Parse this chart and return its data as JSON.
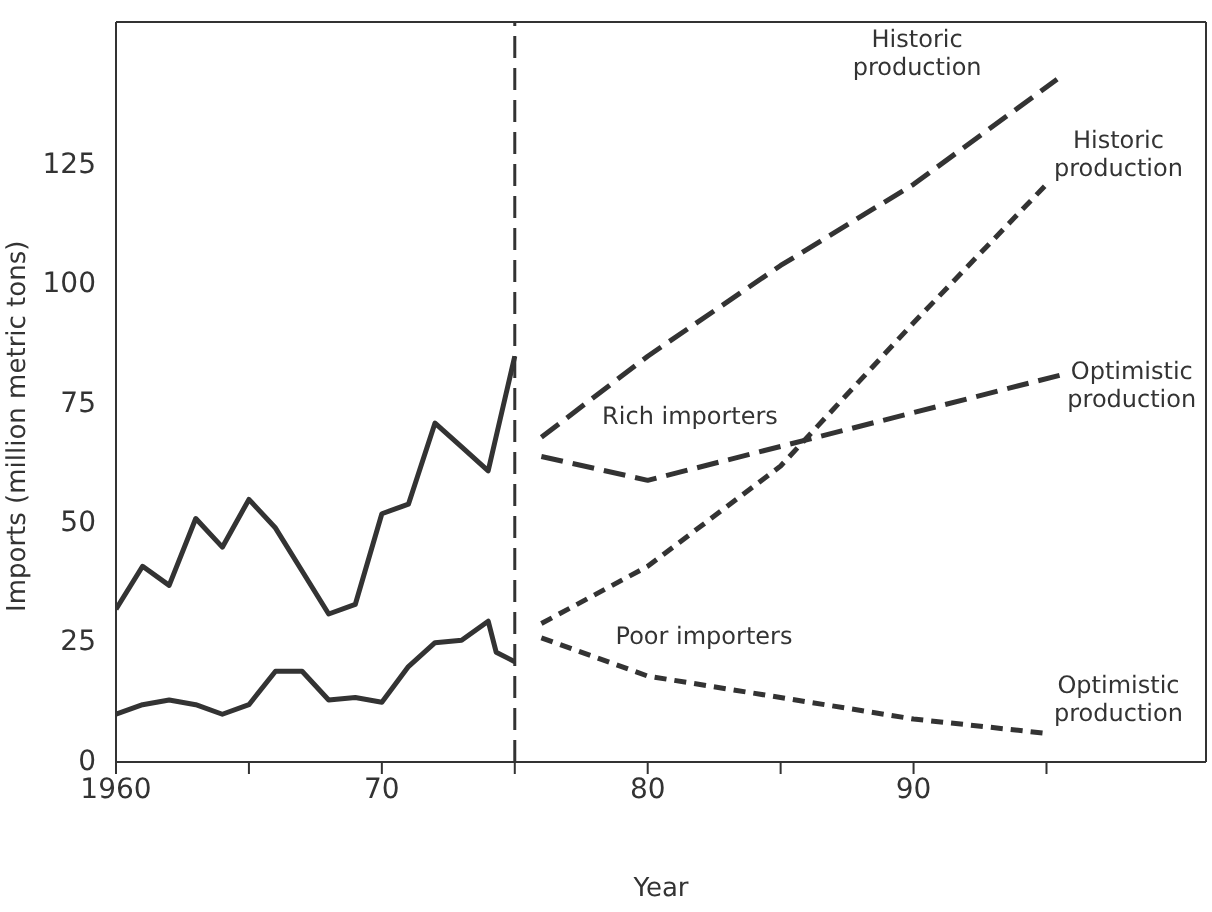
{
  "chart_data": {
    "type": "line",
    "xlabel": "Year",
    "ylabel": "Imports (million metric tons)",
    "xlim": [
      1960,
      2001
    ],
    "ylim": [
      0,
      155
    ],
    "xticks": [
      {
        "value": 1960,
        "label": "1960"
      },
      {
        "value": 1965,
        "label": null
      },
      {
        "value": 1970,
        "label": "70"
      },
      {
        "value": 1975,
        "label": null
      },
      {
        "value": 1980,
        "label": "80"
      },
      {
        "value": 1985,
        "label": null
      },
      {
        "value": 1990,
        "label": "90"
      },
      {
        "value": 1995,
        "label": null
      }
    ],
    "yticks": [
      0,
      25,
      50,
      75,
      100,
      125
    ],
    "grid": false,
    "legend": false,
    "marker": "none",
    "series": [
      {
        "color": "#333333",
        "line_style": "solid",
        "x": [
          1960,
          1961,
          1962,
          1963,
          1964,
          1965,
          1966,
          1967,
          1968,
          1969,
          1970,
          1971,
          1972,
          1973,
          1974,
          1975
        ],
        "values": [
          32,
          41,
          37,
          51,
          45,
          55,
          49,
          40,
          31,
          33,
          52,
          54,
          71,
          66,
          61,
          85
        ]
      },
      {
        "color": "#333333",
        "line_style": "solid",
        "x": [
          1960,
          1961,
          1962,
          1963,
          1964,
          1965,
          1966,
          1967,
          1968,
          1969,
          1970,
          1971,
          1972,
          1973,
          1974,
          1974.3,
          1975
        ],
        "values": [
          10,
          12,
          13,
          12,
          10,
          12,
          19,
          19,
          13,
          13.5,
          12.5,
          20,
          25,
          25.5,
          29.5,
          23,
          21
        ]
      },
      {
        "name": "Historic production",
        "color": "#333333",
        "line_style": "dashed",
        "x": [
          1976,
          1980,
          1985,
          1990,
          1995.4
        ],
        "values": [
          68,
          85,
          104,
          121,
          143
        ]
      },
      {
        "name": "Optimistic production",
        "color": "#333333",
        "line_style": "dashed",
        "x": [
          1976,
          1980,
          1995.5
        ],
        "values": [
          64,
          59,
          81
        ]
      },
      {
        "name": "Historic production",
        "color": "#333333",
        "line_style": "dotted",
        "x": [
          1976,
          1980,
          1985,
          1990,
          1995
        ],
        "values": [
          29,
          41,
          62,
          92,
          121
        ]
      },
      {
        "name": "Optimistic production",
        "color": "#333333",
        "line_style": "dotted",
        "x": [
          1976,
          1980,
          1990,
          1995
        ],
        "values": [
          26,
          18,
          9,
          6
        ]
      }
    ],
    "ref_lines": [
      {
        "axis": "x",
        "value": 1975,
        "line_style": "dashed",
        "color": "#333333"
      }
    ],
    "annotations": [
      "Rich importers",
      "Poor importers"
    ]
  }
}
